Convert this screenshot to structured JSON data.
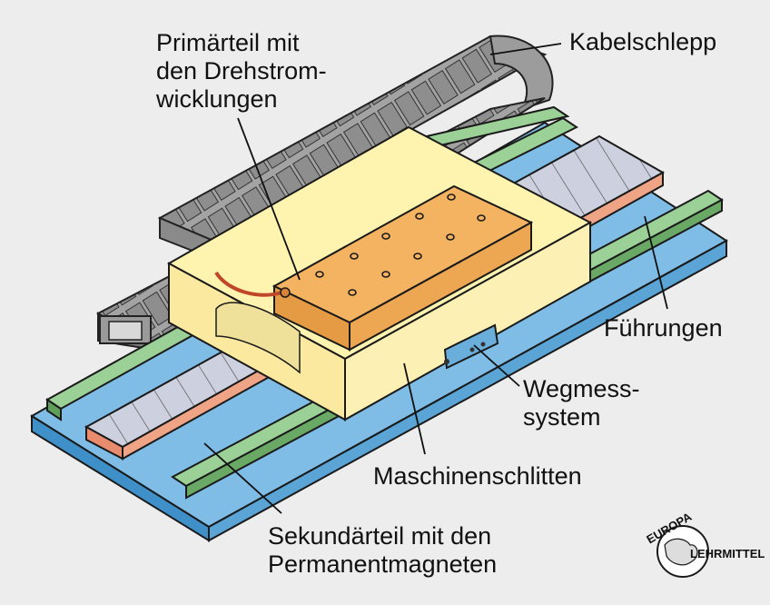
{
  "labels": {
    "primaerteil": "Primärteil mit\nden Drehstrom-\nwicklungen",
    "kabelschlepp": "Kabelschlepp",
    "fuehrungen": "Führungen",
    "wegmess": "Wegmess-\nsystem",
    "maschinenschlitten": "Maschinenschlitten",
    "sekundaerteil": "Sekundärteil mit den\nPermanentmagneten"
  },
  "logo": {
    "line1": "EUROPA",
    "line2": "LEHRMITTEL"
  },
  "colors": {
    "background": "#ededed",
    "base_blue": "#6fb4e0",
    "guide_green": "#8cc48a",
    "magnet_grey": "#c9cbd9",
    "magnet_red": "#ec9a7e",
    "carriage_cream": "#fdf3b8",
    "primary_orange": "#f2ad5c",
    "cable_chain_grey": "#9a9a9a"
  }
}
